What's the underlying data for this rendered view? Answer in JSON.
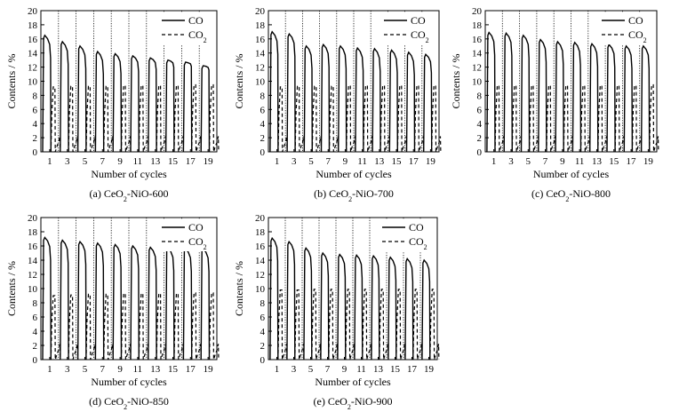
{
  "chart_data": [
    {
      "type": "line",
      "panel_label": "(a) CeO₂-NiO-600",
      "xlabel": "Number of cycles",
      "ylabel": "Contents / %",
      "ylim": [
        0,
        20
      ],
      "yticks": [
        "0",
        "2",
        "4",
        "6",
        "8",
        "10",
        "12",
        "14",
        "16",
        "18",
        "20"
      ],
      "xtick_labels": [
        "1",
        "3",
        "5",
        "7",
        "9",
        "11",
        "13",
        "15",
        "17",
        "19"
      ],
      "cycles": 10,
      "legend": [
        {
          "name": "CO",
          "style": "solid"
        },
        {
          "name": "CO₂",
          "style": "dashed"
        }
      ],
      "legend_position": "top-right",
      "series": [
        {
          "name": "CO",
          "peak_values": [
            16.5,
            15.6,
            15.0,
            14.2,
            13.9,
            13.6,
            13.3,
            13.0,
            12.7,
            12.2
          ]
        },
        {
          "name": "CO₂",
          "peak_values": [
            9.2,
            9.3,
            9.3,
            9.3,
            9.4,
            9.4,
            9.4,
            9.4,
            9.5,
            9.5
          ]
        }
      ]
    },
    {
      "type": "line",
      "panel_label": "(b) CeO₂-NiO-700",
      "xlabel": "Number of cycles",
      "ylabel": "Contents / %",
      "ylim": [
        0,
        20
      ],
      "yticks": [
        "0",
        "2",
        "4",
        "6",
        "8",
        "10",
        "12",
        "14",
        "16",
        "18",
        "20"
      ],
      "xtick_labels": [
        "1",
        "3",
        "5",
        "7",
        "9",
        "11",
        "13",
        "15",
        "17",
        "19"
      ],
      "cycles": 10,
      "legend": [
        {
          "name": "CO",
          "style": "solid"
        },
        {
          "name": "CO₂",
          "style": "dashed"
        }
      ],
      "legend_position": "top-right",
      "series": [
        {
          "name": "CO",
          "peak_values": [
            17.0,
            16.7,
            15.0,
            15.2,
            15.0,
            14.7,
            14.6,
            14.4,
            14.1,
            13.8
          ]
        },
        {
          "name": "CO₂",
          "peak_values": [
            9.2,
            9.3,
            9.3,
            9.3,
            9.4,
            9.4,
            9.4,
            9.4,
            9.4,
            9.4
          ]
        }
      ]
    },
    {
      "type": "line",
      "panel_label": "(c) CeO₂-NiO-800",
      "xlabel": "Number of cycles",
      "ylabel": "Contents / %",
      "ylim": [
        0,
        20
      ],
      "yticks": [
        "0",
        "2",
        "4",
        "6",
        "8",
        "10",
        "12",
        "14",
        "16",
        "18",
        "20"
      ],
      "xtick_labels": [
        "1",
        "3",
        "5",
        "7",
        "9",
        "11",
        "13",
        "15",
        "17",
        "19"
      ],
      "cycles": 10,
      "legend": [
        {
          "name": "CO",
          "style": "solid"
        },
        {
          "name": "CO₂",
          "style": "dashed"
        }
      ],
      "legend_position": "top-right",
      "series": [
        {
          "name": "CO",
          "peak_values": [
            16.9,
            16.8,
            16.5,
            15.9,
            15.6,
            15.5,
            15.3,
            15.2,
            15.0,
            15.0
          ]
        },
        {
          "name": "CO₂",
          "peak_values": [
            9.4,
            9.4,
            9.4,
            9.4,
            9.4,
            9.4,
            9.4,
            9.4,
            9.4,
            9.5
          ]
        }
      ]
    },
    {
      "type": "line",
      "panel_label": "(d) CeO₂-NiO-850",
      "xlabel": "Number of cycles",
      "ylabel": "Contents / %",
      "ylim": [
        0,
        20
      ],
      "yticks": [
        "0",
        "2",
        "4",
        "6",
        "8",
        "10",
        "12",
        "14",
        "16",
        "18",
        "20"
      ],
      "xtick_labels": [
        "1",
        "3",
        "5",
        "7",
        "9",
        "11",
        "13",
        "15",
        "17",
        "19"
      ],
      "cycles": 10,
      "legend": [
        {
          "name": "CO",
          "style": "solid"
        },
        {
          "name": "CO₂",
          "style": "dashed"
        }
      ],
      "legend_position": "top-right",
      "series": [
        {
          "name": "CO",
          "peak_values": [
            17.2,
            16.8,
            16.6,
            16.4,
            16.2,
            16.0,
            15.8,
            15.7,
            15.6,
            15.6
          ]
        },
        {
          "name": "CO₂",
          "peak_values": [
            9.0,
            9.1,
            9.2,
            9.2,
            9.3,
            9.3,
            9.3,
            9.3,
            9.4,
            9.4
          ]
        }
      ]
    },
    {
      "type": "line",
      "panel_label": "(e) CeO₂-NiO-900",
      "xlabel": "Number of cycles",
      "ylabel": "Contents / %",
      "ylim": [
        0,
        20
      ],
      "yticks": [
        "0",
        "2",
        "4",
        "6",
        "8",
        "10",
        "12",
        "14",
        "16",
        "18",
        "20"
      ],
      "xtick_labels": [
        "1",
        "3",
        "5",
        "7",
        "9",
        "11",
        "13",
        "15",
        "17",
        "19"
      ],
      "cycles": 10,
      "legend": [
        {
          "name": "CO",
          "style": "solid"
        },
        {
          "name": "CO₂",
          "style": "dashed"
        }
      ],
      "legend_position": "top-right",
      "series": [
        {
          "name": "CO",
          "peak_values": [
            17.1,
            16.6,
            15.7,
            15.0,
            14.8,
            14.7,
            14.6,
            14.4,
            14.2,
            14.0
          ]
        },
        {
          "name": "CO₂",
          "peak_values": [
            9.8,
            9.8,
            9.9,
            9.9,
            9.9,
            9.9,
            9.9,
            9.9,
            9.9,
            9.9
          ]
        }
      ]
    }
  ]
}
